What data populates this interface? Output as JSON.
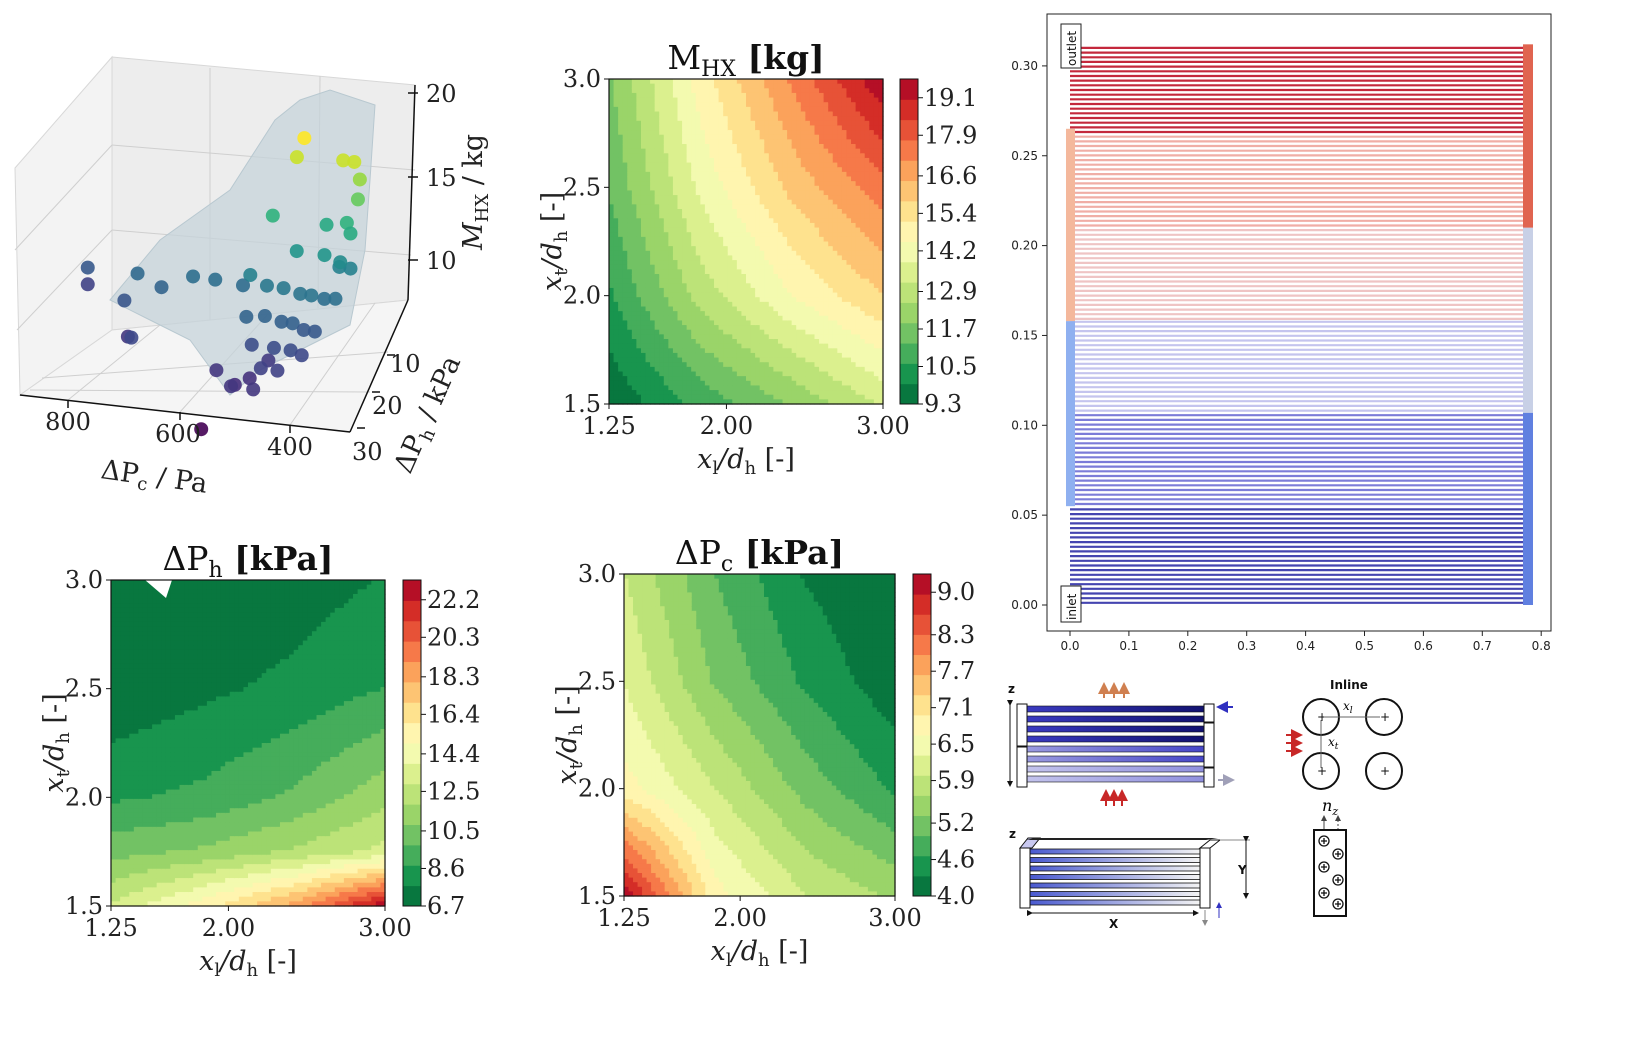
{
  "chart_data": [
    {
      "type": "scatter",
      "projection": "3d",
      "surface": true,
      "colormap": "viridis",
      "xlabel": {
        "sym": "ΔP",
        "sub": "c",
        "unit": " / Pa"
      },
      "ylabel": {
        "sym": "ΔP",
        "sub": "h",
        "unit": " / kPa"
      },
      "zlabel": {
        "sym": "M",
        "sub": "HX",
        "unit": " / kg"
      },
      "xticks": [
        "800",
        "600",
        "400"
      ],
      "yticks": [
        "10",
        "20",
        "30"
      ],
      "zticks": [
        "10",
        "15",
        "20"
      ],
      "points": [
        [
          850,
          5,
          10.5
        ],
        [
          850,
          5,
          9.5
        ],
        [
          760,
          12,
          10.3
        ],
        [
          750,
          8,
          11.2
        ],
        [
          700,
          10,
          11.0
        ],
        [
          650,
          8,
          11.5
        ],
        [
          610,
          8,
          11.5
        ],
        [
          560,
          8,
          11.4
        ],
        [
          720,
          20,
          9.8
        ],
        [
          740,
          16,
          9.0
        ],
        [
          560,
          22,
          9.0
        ],
        [
          520,
          24,
          8.7
        ],
        [
          500,
          22,
          8.8
        ],
        [
          480,
          18,
          9.2
        ],
        [
          560,
          30,
          7.0
        ],
        [
          470,
          2,
          19.5
        ],
        [
          480,
          3,
          18.5
        ],
        [
          400,
          2,
          18.5
        ],
        [
          380,
          2,
          18.5
        ],
        [
          370,
          2,
          17.5
        ],
        [
          370,
          3,
          16.5
        ],
        [
          520,
          4,
          15.0
        ],
        [
          430,
          2,
          14.5
        ],
        [
          390,
          3,
          15.0
        ],
        [
          380,
          4,
          14.6
        ],
        [
          470,
          6,
          13.5
        ],
        [
          420,
          6,
          13.5
        ],
        [
          395,
          5,
          13.0
        ],
        [
          400,
          4,
          12.5
        ],
        [
          380,
          4,
          12.5
        ],
        [
          540,
          10,
          12.5
        ],
        [
          510,
          10,
          12.0
        ],
        [
          480,
          10,
          12.0
        ],
        [
          450,
          10,
          11.8
        ],
        [
          430,
          10,
          11.8
        ],
        [
          410,
          9,
          11.5
        ],
        [
          390,
          9,
          11.6
        ],
        [
          530,
          15,
          11.0
        ],
        [
          500,
          14,
          11.0
        ],
        [
          470,
          14,
          10.8
        ],
        [
          450,
          14,
          10.8
        ],
        [
          430,
          14,
          10.5
        ],
        [
          410,
          14,
          10.5
        ],
        [
          510,
          18,
          10.0
        ],
        [
          470,
          18,
          10.0
        ],
        [
          440,
          18,
          10.0
        ],
        [
          420,
          18,
          9.8
        ],
        [
          480,
          22,
          9.5
        ],
        [
          450,
          22,
          9.5
        ],
        [
          520,
          26,
          9.0
        ],
        [
          480,
          26,
          9.0
        ]
      ]
    },
    {
      "type": "heatmap",
      "style": "filled-contour",
      "colormap": "RdYlGn_r",
      "title": {
        "sym": "M",
        "sub": "HX",
        "unit": " [kg]"
      },
      "xlabel": {
        "a": "x",
        "a_sub": "l",
        "b": "/d",
        "b_sub": "h",
        "unit": " [-]"
      },
      "ylabel": {
        "a": "x",
        "a_sub": "t",
        "b": "/d",
        "b_sub": "h",
        "unit": " [-]"
      },
      "xlim": [
        1.25,
        3.0
      ],
      "ylim": [
        1.5,
        3.0
      ],
      "xticks": [
        "1.25",
        "2.00",
        "3.00"
      ],
      "yticks": [
        "1.5",
        "2.0",
        "2.5",
        "3.0"
      ],
      "colorbar_ticks": [
        "9.3",
        "10.5",
        "11.7",
        "12.9",
        "14.2",
        "15.4",
        "16.6",
        "17.9",
        "19.1"
      ],
      "colorbar_range": [
        9.3,
        19.7
      ],
      "grid_x": [
        1.25,
        1.83,
        2.42,
        3.0
      ],
      "grid_y": [
        1.5,
        2.0,
        2.5,
        3.0
      ],
      "z": [
        [
          9.4,
          10.8,
          12.0,
          13.3
        ],
        [
          10.5,
          12.8,
          14.5,
          15.8
        ],
        [
          11.3,
          14.0,
          16.0,
          17.5
        ],
        [
          11.8,
          14.8,
          17.2,
          19.6
        ]
      ]
    },
    {
      "type": "heatmap",
      "style": "filled-contour",
      "colormap": "RdYlGn_r",
      "title": {
        "sym": "ΔP",
        "sub": "h",
        "unit": " [kPa]"
      },
      "xlabel": {
        "a": "x",
        "a_sub": "l",
        "b": "/d",
        "b_sub": "h",
        "unit": " [-]"
      },
      "ylabel": {
        "a": "x",
        "a_sub": "t",
        "b": "/d",
        "b_sub": "h",
        "unit": " [-]"
      },
      "xlim": [
        1.25,
        3.0
      ],
      "ylim": [
        1.5,
        3.0
      ],
      "xticks": [
        "1.25",
        "2.00",
        "3.00"
      ],
      "yticks": [
        "1.5",
        "2.0",
        "2.5",
        "3.0"
      ],
      "colorbar_ticks": [
        "6.7",
        "8.6",
        "10.5",
        "12.5",
        "14.4",
        "16.4",
        "18.3",
        "20.3",
        "22.2"
      ],
      "colorbar_range": [
        6.7,
        23.2
      ],
      "grid_x": [
        1.25,
        1.83,
        2.42,
        3.0
      ],
      "grid_y": [
        1.5,
        1.75,
        2.0,
        2.5,
        3.0
      ],
      "z": [
        [
          13.0,
          15.5,
          18.5,
          23.0
        ],
        [
          10.4,
          11.0,
          12.0,
          13.2
        ],
        [
          8.6,
          9.0,
          10.0,
          11.5
        ],
        [
          6.9,
          7.5,
          8.0,
          8.8
        ],
        [
          6.7,
          6.8,
          7.2,
          7.8
        ]
      ]
    },
    {
      "type": "heatmap",
      "style": "filled-contour",
      "colormap": "RdYlGn_r",
      "title": {
        "sym": "ΔP",
        "sub": "c",
        "unit": " [kPa]"
      },
      "xlabel": {
        "a": "x",
        "a_sub": "l",
        "b": "/d",
        "b_sub": "h",
        "unit": " [-]"
      },
      "ylabel": {
        "a": "x",
        "a_sub": "t",
        "b": "/d",
        "b_sub": "h",
        "unit": " [-]"
      },
      "xlim": [
        1.25,
        3.0
      ],
      "ylim": [
        1.5,
        3.0
      ],
      "xticks": [
        "1.25",
        "2.00",
        "3.00"
      ],
      "yticks": [
        "1.5",
        "2.0",
        "2.5",
        "3.0"
      ],
      "colorbar_ticks": [
        "4.0",
        "4.6",
        "5.2",
        "5.9",
        "6.5",
        "7.1",
        "7.7",
        "8.3",
        "9.0"
      ],
      "colorbar_range": [
        4.0,
        9.3
      ],
      "grid_x": [
        1.25,
        1.83,
        2.42,
        3.0
      ],
      "grid_y": [
        1.5,
        2.0,
        2.5,
        3.0
      ],
      "z": [
        [
          9.2,
          6.8,
          6.0,
          5.6
        ],
        [
          6.8,
          6.0,
          5.2,
          4.6
        ],
        [
          6.3,
          5.3,
          4.6,
          4.1
        ],
        [
          6.0,
          5.0,
          4.3,
          4.0
        ]
      ]
    },
    {
      "type": "line",
      "xlim": [
        0.0,
        0.8
      ],
      "ylim": [
        0.0,
        0.31
      ],
      "xticks": [
        "0.0",
        "0.1",
        "0.2",
        "0.3",
        "0.4",
        "0.5",
        "0.6",
        "0.7",
        "0.8"
      ],
      "yticks": [
        "0.00",
        "0.05",
        "0.10",
        "0.15",
        "0.20",
        "0.25",
        "0.30"
      ],
      "labels": {
        "top": "outlet",
        "bottom": "inlet"
      },
      "line_x": [
        0.0,
        0.77
      ],
      "bands": [
        {
          "y": [
            0.0,
            0.055
          ],
          "color": "#4545b0"
        },
        {
          "y": [
            0.055,
            0.107
          ],
          "color": "#7c7cd8"
        },
        {
          "y": [
            0.107,
            0.158
          ],
          "color": "#c4c4ee"
        },
        {
          "y": [
            0.158,
            0.21
          ],
          "color": "#efc4c4"
        },
        {
          "y": [
            0.21,
            0.262
          ],
          "color": "#f0aea6"
        },
        {
          "y": [
            0.262,
            0.312
          ],
          "color": "#c4283c"
        }
      ],
      "left_bars": [
        {
          "y": [
            0.055,
            0.158
          ],
          "color": "#8fb0f0"
        },
        {
          "y": [
            0.158,
            0.265
          ],
          "color": "#f4b89c"
        }
      ],
      "right_bars": [
        {
          "y": [
            0.0,
            0.107
          ],
          "color": "#6080e0"
        },
        {
          "y": [
            0.107,
            0.21
          ],
          "color": "#c8d0e6"
        },
        {
          "y": [
            0.21,
            0.312
          ],
          "color": "#e06450"
        }
      ]
    }
  ],
  "schematic": {
    "z_top": "z",
    "z_bottom": "z",
    "y_dim": "Y",
    "x_dim": "X",
    "inline_title": "Inline",
    "xl": "x",
    "xl_sub": "l",
    "xt": "x",
    "xt_sub": "t",
    "nz": "n",
    "nz_sub": "z"
  }
}
